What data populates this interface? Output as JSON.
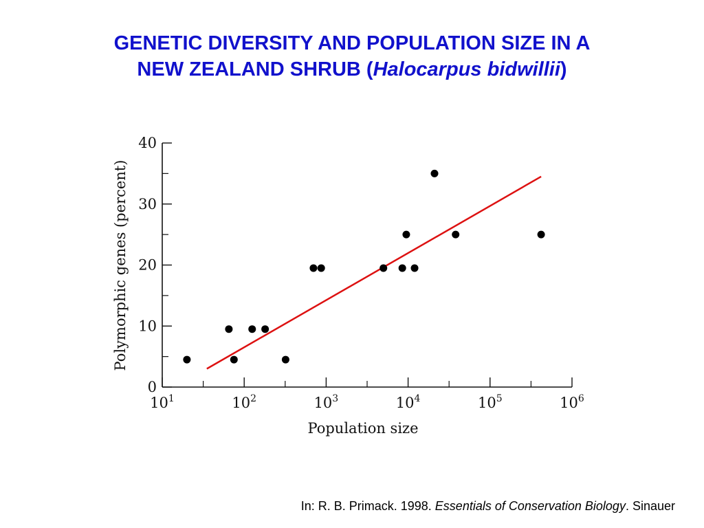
{
  "slide": {
    "title_line1": "GENETIC DIVERSITY AND POPULATION SIZE IN A",
    "title_line2_prefix": "NEW ZEALAND SHRUB (",
    "title_line2_italic": "Halocarpus bidwillii",
    "title_line2_suffix": ")",
    "title_color": "#1111cc"
  },
  "citation": {
    "prefix": "In: R. B. Primack. 1998. ",
    "italic": "Essentials of Conservation Biology",
    "suffix": ". Sinauer"
  },
  "chart_data": {
    "type": "scatter",
    "title": "",
    "xlabel": "Population size",
    "ylabel": "Polymorphic genes (percent)",
    "x_scale": "log",
    "xlim": [
      10,
      1000000
    ],
    "ylim": [
      0,
      40
    ],
    "x_ticks": [
      {
        "base": "10",
        "exp": "1"
      },
      {
        "base": "10",
        "exp": "2"
      },
      {
        "base": "10",
        "exp": "3"
      },
      {
        "base": "10",
        "exp": "4"
      },
      {
        "base": "10",
        "exp": "5"
      },
      {
        "base": "10",
        "exp": "6"
      }
    ],
    "y_ticks": [
      "0",
      "10",
      "20",
      "30",
      "40"
    ],
    "grid": false,
    "points": [
      {
        "x": 20,
        "y": 4.5
      },
      {
        "x": 65,
        "y": 9.5
      },
      {
        "x": 75,
        "y": 4.5
      },
      {
        "x": 125,
        "y": 9.5
      },
      {
        "x": 180,
        "y": 9.5
      },
      {
        "x": 320,
        "y": 4.5
      },
      {
        "x": 700,
        "y": 19.5
      },
      {
        "x": 870,
        "y": 19.5
      },
      {
        "x": 5000,
        "y": 19.5
      },
      {
        "x": 8500,
        "y": 19.5
      },
      {
        "x": 9500,
        "y": 25
      },
      {
        "x": 12000,
        "y": 19.5
      },
      {
        "x": 21000,
        "y": 35
      },
      {
        "x": 38000,
        "y": 25
      },
      {
        "x": 420000,
        "y": 25
      }
    ],
    "trend_line": {
      "x": [
        35,
        420000
      ],
      "y": [
        3,
        34.5
      ],
      "color": "#dd1111"
    }
  }
}
